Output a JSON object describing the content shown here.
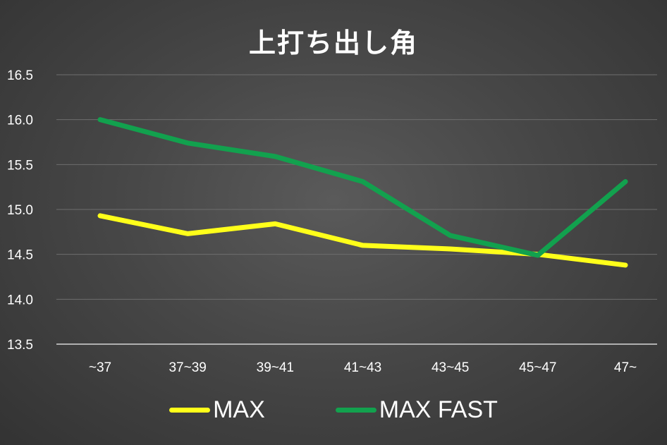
{
  "chart_data": {
    "type": "line",
    "title": "上打ち出し角",
    "categories": [
      "~37",
      "37~39",
      "39~41",
      "41~43",
      "43~45",
      "45~47",
      "47~"
    ],
    "series": [
      {
        "name": "MAX",
        "values": [
          14.93,
          14.73,
          14.84,
          14.6,
          14.56,
          14.5,
          14.38
        ],
        "color": "#ffff1a"
      },
      {
        "name": "MAX FAST",
        "values": [
          16.0,
          15.74,
          15.59,
          15.31,
          14.71,
          14.49,
          15.31
        ],
        "color": "#12a14e"
      }
    ],
    "ylim": [
      13.5,
      16.5
    ],
    "yticks": [
      "16.5",
      "16.0",
      "15.5",
      "15.0",
      "14.5",
      "14.0",
      "13.5"
    ],
    "grid": true,
    "legend_position": "bottom",
    "xlabel": "",
    "ylabel": ""
  },
  "colors": {
    "background": "#474747",
    "gridline": "#6e6e6e",
    "axis": "#b0b0b0",
    "text": "#ffffff"
  }
}
